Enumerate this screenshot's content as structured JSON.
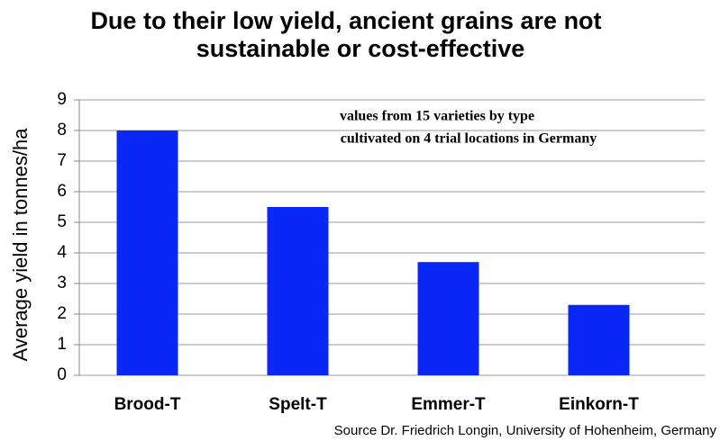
{
  "chart_data": {
    "type": "bar",
    "title": [
      "Due to their low yield, ancient grains are not",
      "sustainable or cost-effective"
    ],
    "annotation": [
      "values from 15 varieties by type",
      "cultivated on 4 trial locations in Germany"
    ],
    "source": "Source Dr. Friedrich Longin,  University of Hohenheim, Germany",
    "y_label": "Average yield in tonnes/ha",
    "categories": [
      "Brood-T",
      "Spelt-T",
      "Emmer-T",
      "Einkorn-T"
    ],
    "values": [
      8.0,
      5.5,
      3.7,
      2.3
    ],
    "color": "#0a28f5",
    "ylim": [
      0,
      9
    ],
    "yticks": [
      0,
      1,
      2,
      3,
      4,
      5,
      6,
      7,
      8,
      9
    ],
    "grid": true
  }
}
